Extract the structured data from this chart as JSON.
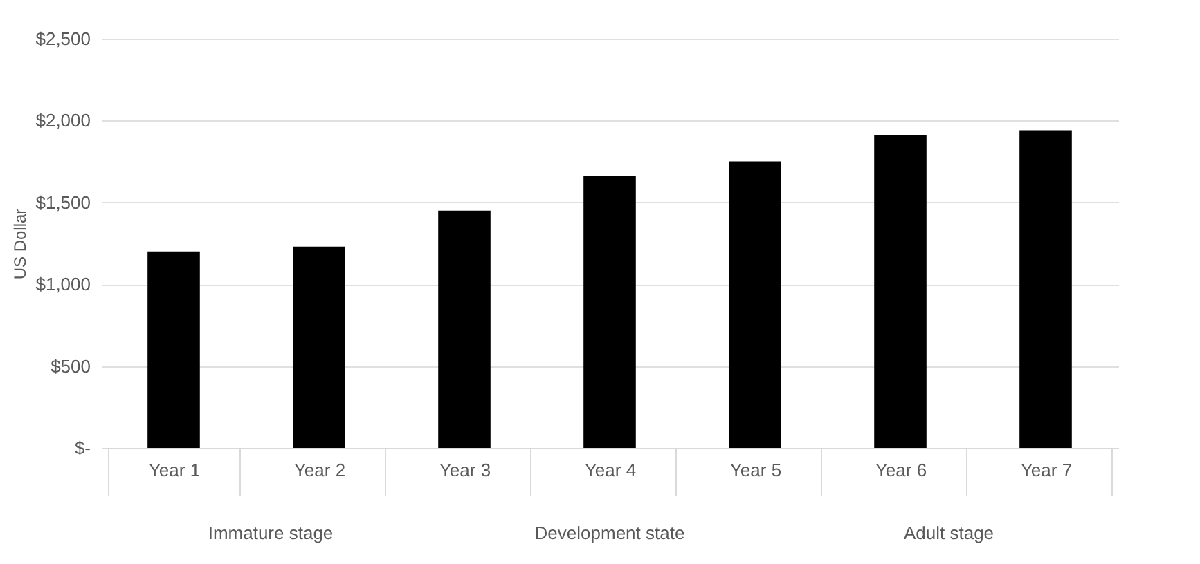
{
  "chart_data": {
    "type": "bar",
    "ylabel": "US Dollar",
    "categories": [
      "Year 1",
      "Year 2",
      "Year 3",
      "Year 4",
      "Year 5",
      "Year 6",
      "Year 7"
    ],
    "values": [
      1200,
      1230,
      1450,
      1660,
      1750,
      1910,
      1940
    ],
    "color": "#000000",
    "ylim": [
      0,
      2500
    ],
    "yticks": [
      {
        "value": 0,
        "label": "$-"
      },
      {
        "value": 500,
        "label": "$500"
      },
      {
        "value": 1000,
        "label": "$1,000"
      },
      {
        "value": 1500,
        "label": "$1,500"
      },
      {
        "value": 2000,
        "label": "$2,000"
      },
      {
        "value": 2500,
        "label": "$2,500"
      }
    ],
    "grid": "y",
    "annotations": [
      "Immature stage",
      "Development state",
      "Adult stage"
    ]
  }
}
